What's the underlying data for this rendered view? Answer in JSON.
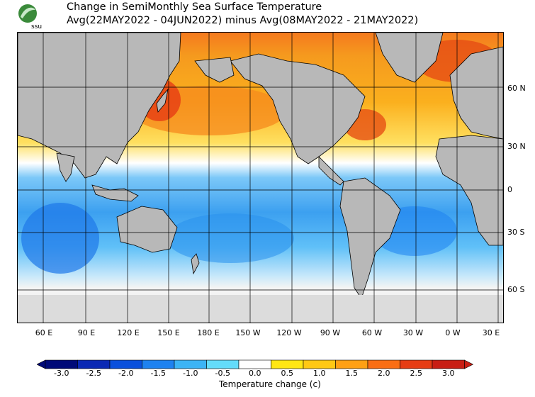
{
  "header": {
    "title_line1": "Change in SemiMonthly Sea Surface Temperature",
    "title_line2": "Avg(22MAY2022 - 04JUN2022) minus Avg(08MAY2022 - 21MAY2022)",
    "logo_text": "ssu"
  },
  "map": {
    "lat_labels": [
      "60 N",
      "30 N",
      "0",
      "30 S",
      "60 S"
    ],
    "lon_labels": [
      "60 E",
      "90 E",
      "120 E",
      "150 E",
      "180 E",
      "150 W",
      "120 W",
      "90 W",
      "60 W",
      "30 W",
      "0 W",
      "30 E"
    ],
    "colors": {
      "land": "#b8b8b8",
      "ice": "#dcdcdc",
      "grid": "#000000"
    }
  },
  "colorbar": {
    "title": "Temperature change  (c)",
    "tick_labels": [
      "-3.0",
      "-2.5",
      "-2.0",
      "-1.5",
      "-1.0",
      "-0.5",
      "0.0",
      "0.5",
      "1.0",
      "1.5",
      "2.0",
      "2.5",
      "3.0"
    ],
    "colors": [
      "#000a78",
      "#0a28b4",
      "#0a50dc",
      "#1e82f0",
      "#3cb4f5",
      "#64dcfa",
      "#ffffff",
      "#ffe614",
      "#ffc814",
      "#ffa014",
      "#fa6e14",
      "#e63c14",
      "#c81e14"
    ]
  }
}
